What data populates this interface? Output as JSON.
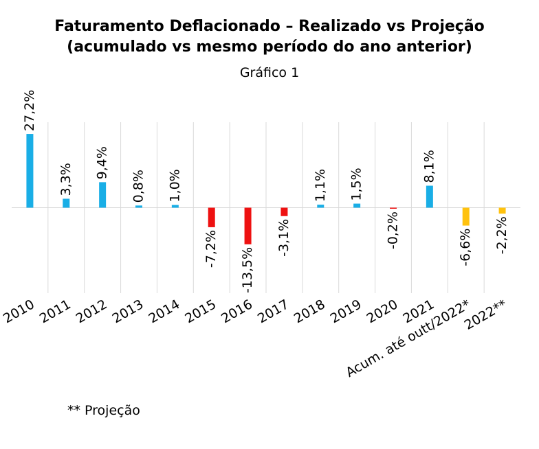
{
  "title_line1": "Faturamento Deflacionado – Realizado vs Projeção",
  "title_line2": "(acumulado vs mesmo período do ano anterior)",
  "subtitle": "Gráfico 1",
  "footnote": "** Projeção",
  "colors": {
    "positive": "#19aee6",
    "negative": "#ee1111",
    "projection": "#ffc20e",
    "grid": "#d9d9d9"
  },
  "chart_data": {
    "type": "bar",
    "categories": [
      "2010",
      "2011",
      "2012",
      "2013",
      "2014",
      "2015",
      "2016",
      "2017",
      "2018",
      "2019",
      "2020",
      "2021",
      "Acum. até outt/2022*",
      "2022**"
    ],
    "values": [
      27.2,
      3.3,
      9.4,
      0.8,
      1.0,
      -7.2,
      -13.5,
      -3.1,
      1.1,
      1.5,
      -0.2,
      8.1,
      -6.6,
      -2.2
    ],
    "labels": [
      "27,2%",
      "3,3%",
      "9,4%",
      "0,8%",
      "1,0%",
      "-7,2%",
      "-13,5%",
      "-3,1%",
      "1,1%",
      "1,5%",
      "-0,2%",
      "8,1%",
      "-6,6%",
      "-2,2%"
    ],
    "bar_colors": [
      "#19aee6",
      "#19aee6",
      "#19aee6",
      "#19aee6",
      "#19aee6",
      "#ee1111",
      "#ee1111",
      "#ee1111",
      "#19aee6",
      "#19aee6",
      "#ee1111",
      "#19aee6",
      "#ffc20e",
      "#ffc20e"
    ],
    "ylim": [
      -30,
      30
    ],
    "grid": true,
    "legend": "none"
  }
}
